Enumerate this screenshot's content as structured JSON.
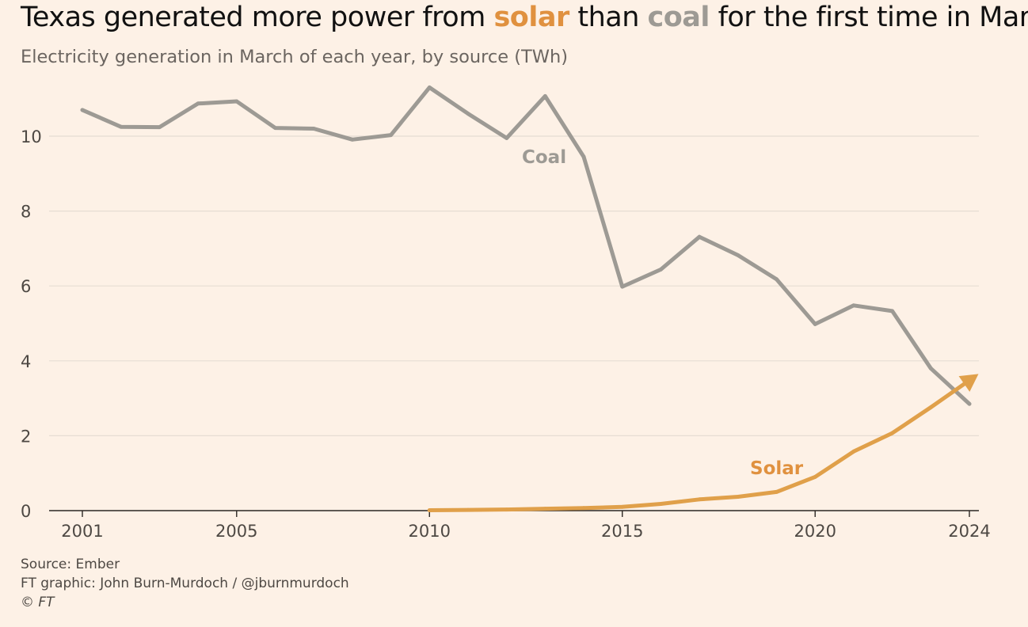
{
  "header": {
    "title_pre": "Texas generated more power from ",
    "title_solar": "solar",
    "title_mid": " than ",
    "title_coal": "coal",
    "title_post": " for the first time in March",
    "subtitle": "Electricity generation in March of each year, by source (TWh)"
  },
  "footer": {
    "source": "Source: Ember",
    "credit": "FT graphic: John Burn-Murdoch / @jburnmurdoch",
    "copyright": "© FT"
  },
  "colors": {
    "background": "#fdf1e6",
    "coal": "#9d9a94",
    "solar": "#e0a04a",
    "solar_label": "#e0913f",
    "grid": "#e6ddd3",
    "axis": "#4d4843"
  },
  "chart_data": {
    "type": "line",
    "title": "Texas generated more power from solar than coal for the first time in March",
    "subtitle": "Electricity generation in March of each year, by source (TWh)",
    "xlabel": "",
    "ylabel": "",
    "xlim": [
      2001,
      2024
    ],
    "ylim": [
      0,
      11.5
    ],
    "x_ticks": [
      2001,
      2005,
      2010,
      2015,
      2020,
      2024
    ],
    "y_ticks": [
      0,
      2,
      4,
      6,
      8,
      10
    ],
    "grid": true,
    "legend": "none",
    "series": [
      {
        "name": "Coal",
        "color": "#9d9a94",
        "x": [
          2001,
          2002,
          2003,
          2004,
          2005,
          2006,
          2007,
          2008,
          2009,
          2010,
          2011,
          2012,
          2013,
          2014,
          2015,
          2016,
          2017,
          2018,
          2019,
          2020,
          2021,
          2022,
          2023,
          2024
        ],
        "values": [
          10.7,
          10.25,
          10.24,
          10.87,
          10.93,
          10.22,
          10.2,
          9.91,
          10.03,
          11.3,
          10.6,
          9.95,
          11.07,
          9.45,
          5.98,
          6.44,
          7.31,
          6.82,
          6.18,
          4.98,
          5.48,
          5.33,
          3.8,
          2.85
        ]
      },
      {
        "name": "Solar",
        "color": "#e0a04a",
        "x": [
          2010,
          2011,
          2012,
          2013,
          2014,
          2015,
          2016,
          2017,
          2018,
          2019,
          2020,
          2021,
          2022,
          2023,
          2024
        ],
        "values": [
          0.01,
          0.02,
          0.03,
          0.05,
          0.07,
          0.1,
          0.18,
          0.3,
          0.37,
          0.5,
          0.9,
          1.58,
          2.07,
          2.76,
          3.48
        ]
      }
    ]
  }
}
